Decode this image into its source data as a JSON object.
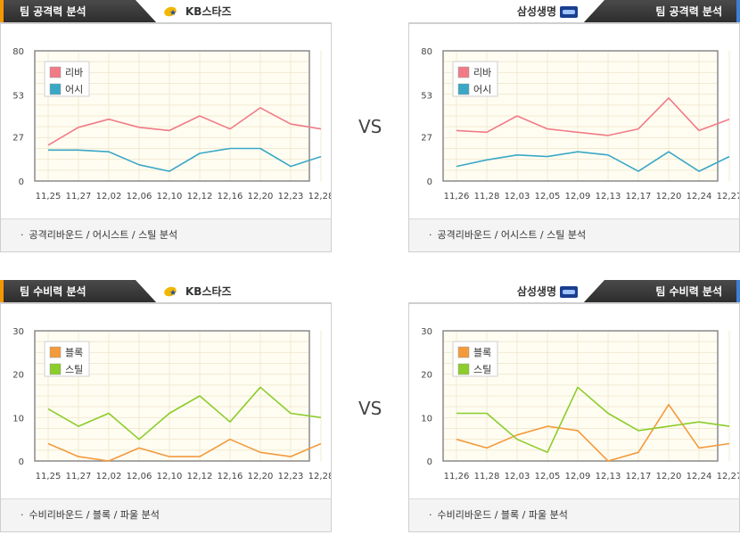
{
  "vs_label": "VS",
  "panels": [
    {
      "id": "off-kb",
      "side": "left",
      "tab_title": "팀 공격력 분석",
      "team_name": "KB스타즈",
      "team_logo": "kb-stars-logo-icon",
      "footer_text": "공격리바운드 / 어시스트 / 스틸 분석"
    },
    {
      "id": "off-ss",
      "side": "right",
      "tab_title": "팀 공격력 분석",
      "team_name": "삼성생명",
      "team_logo": "samsung-blueminx-logo-icon",
      "footer_text": "공격리바운드 / 어시스트 / 스틸 분석"
    },
    {
      "id": "def-kb",
      "side": "left",
      "tab_title": "팀 수비력 분석",
      "team_name": "KB스타즈",
      "team_logo": "kb-stars-logo-icon",
      "footer_text": "수비리바운드 / 블록 / 파울 분석"
    },
    {
      "id": "def-ss",
      "side": "right",
      "tab_title": "팀 수비력 분석",
      "team_name": "삼성생명",
      "team_logo": "samsung-blueminx-logo-icon",
      "footer_text": "수비리바운드 / 블록 / 파울 분석"
    }
  ],
  "chart_data": [
    {
      "type": "line",
      "title": "",
      "categories": [
        "11,25",
        "11,27",
        "12,02",
        "12,06",
        "12,10",
        "12,12",
        "12,16",
        "12,20",
        "12,23",
        "12,28"
      ],
      "yticks": [
        0,
        27,
        53,
        80
      ],
      "ylim": [
        0,
        80
      ],
      "legend": "top-left",
      "grid": true,
      "series": [
        {
          "name": "리바",
          "color": "#f07b86",
          "values": [
            22,
            33,
            38,
            33,
            31,
            40,
            32,
            45,
            35,
            32
          ]
        },
        {
          "name": "어시",
          "color": "#3aa7c6",
          "values": [
            19,
            19,
            18,
            10,
            6,
            17,
            20,
            20,
            9,
            15
          ]
        }
      ]
    },
    {
      "type": "line",
      "title": "",
      "categories": [
        "11,26",
        "11,28",
        "12,03",
        "12,05",
        "12,09",
        "12,13",
        "12,17",
        "12,20",
        "12,24",
        "12,27"
      ],
      "yticks": [
        0,
        27,
        53,
        80
      ],
      "ylim": [
        0,
        80
      ],
      "legend": "top-left",
      "grid": true,
      "series": [
        {
          "name": "리바",
          "color": "#f07b86",
          "values": [
            31,
            30,
            40,
            32,
            30,
            28,
            32,
            51,
            31,
            38
          ]
        },
        {
          "name": "어시",
          "color": "#3aa7c6",
          "values": [
            9,
            13,
            16,
            15,
            18,
            16,
            6,
            18,
            6,
            15
          ]
        }
      ]
    },
    {
      "type": "line",
      "title": "",
      "categories": [
        "11,25",
        "11,27",
        "12,02",
        "12,06",
        "12,10",
        "12,12",
        "12,16",
        "12,20",
        "12,23",
        "12,28"
      ],
      "yticks": [
        0,
        10,
        20,
        30
      ],
      "ylim": [
        0,
        30
      ],
      "legend": "top-left",
      "grid": true,
      "series": [
        {
          "name": "블록",
          "color": "#f39a3c",
          "values": [
            4,
            1,
            0,
            3,
            1,
            1,
            5,
            2,
            1,
            4
          ]
        },
        {
          "name": "스틸",
          "color": "#8ccc2b",
          "values": [
            12,
            8,
            11,
            5,
            11,
            15,
            9,
            17,
            11,
            10
          ]
        }
      ]
    },
    {
      "type": "line",
      "title": "",
      "categories": [
        "11,26",
        "11,28",
        "12,03",
        "12,05",
        "12,09",
        "12,13",
        "12,17",
        "12,20",
        "12,24",
        "12,27"
      ],
      "yticks": [
        0,
        10,
        20,
        30
      ],
      "ylim": [
        0,
        30
      ],
      "legend": "top-left",
      "grid": true,
      "series": [
        {
          "name": "블록",
          "color": "#f39a3c",
          "values": [
            5,
            3,
            6,
            8,
            7,
            0,
            2,
            13,
            3,
            4
          ]
        },
        {
          "name": "스틸",
          "color": "#8ccc2b",
          "values": [
            11,
            11,
            5,
            2,
            17,
            11,
            7,
            8,
            9,
            8
          ]
        }
      ]
    }
  ]
}
